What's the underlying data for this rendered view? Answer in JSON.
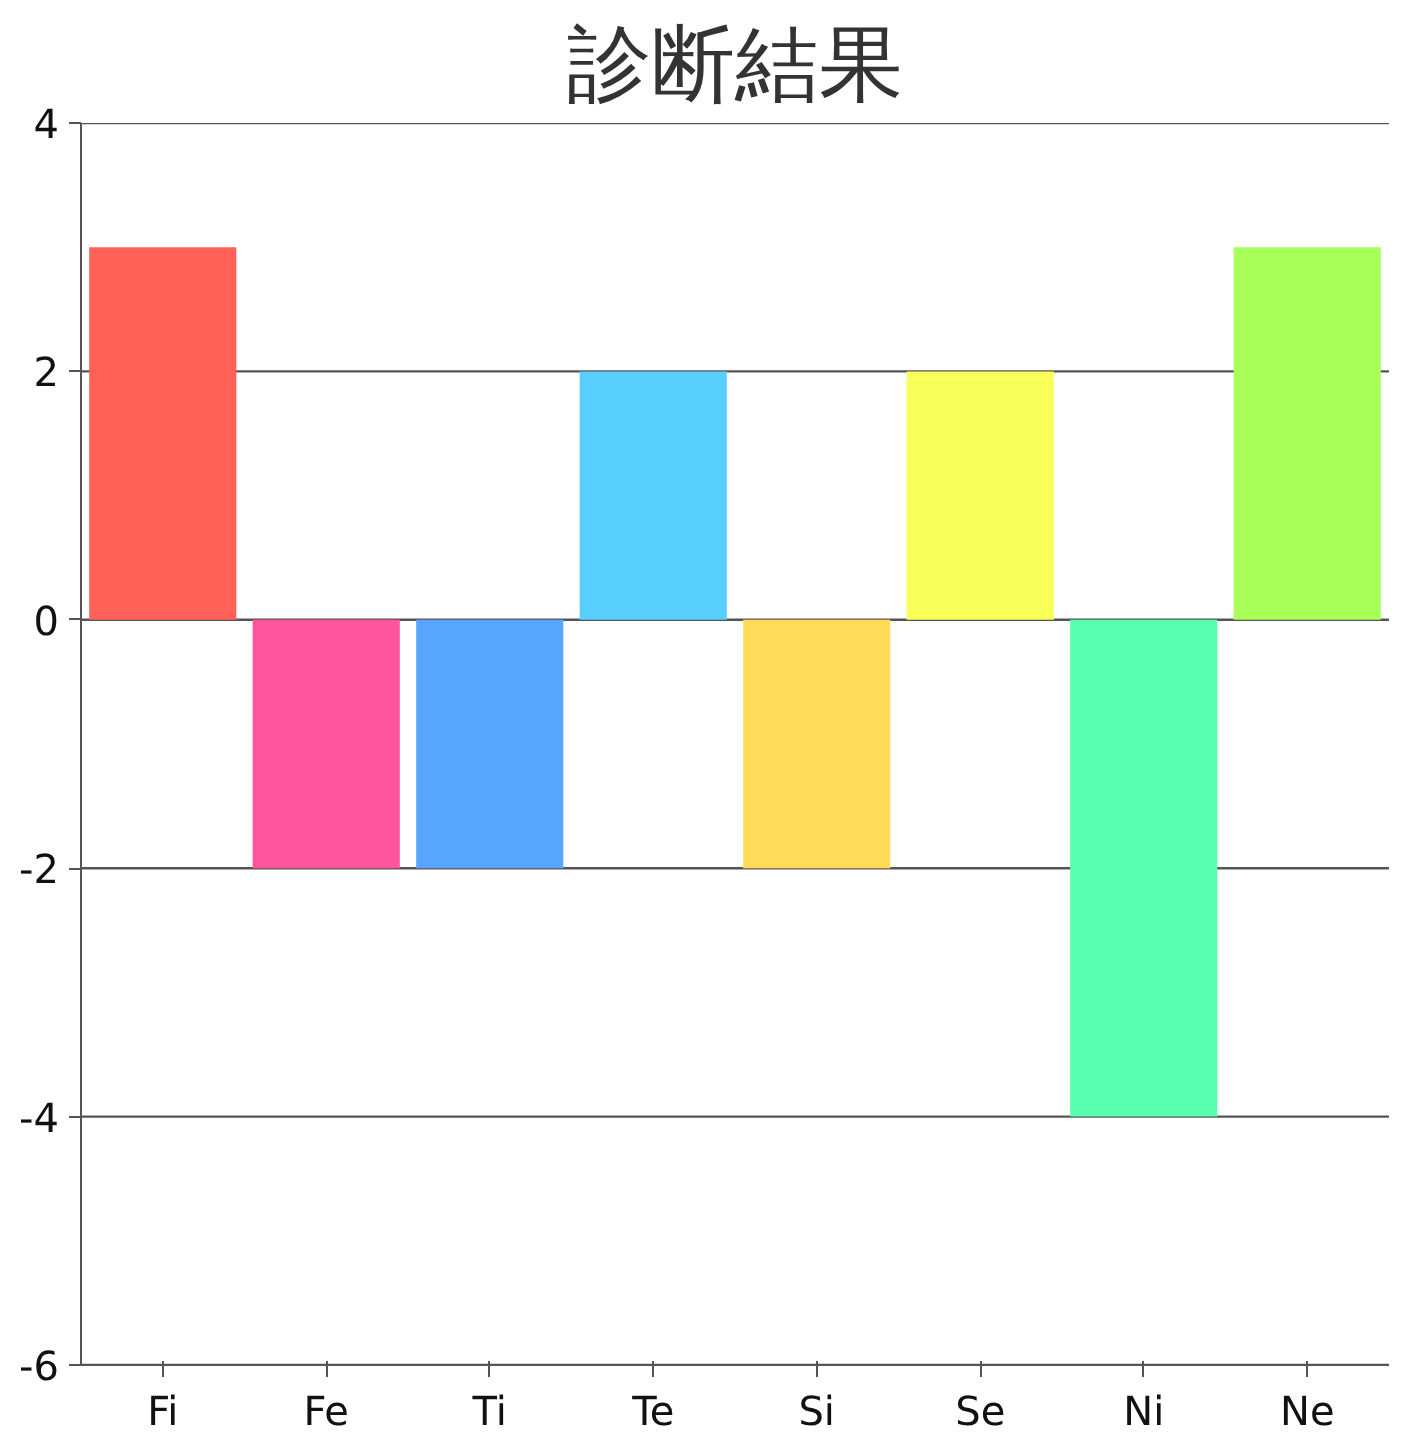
{
  "chart_data": {
    "type": "bar",
    "title": "診断結果",
    "categories": [
      "Fi",
      "Fe",
      "Ti",
      "Te",
      "Si",
      "Se",
      "Ni",
      "Ne"
    ],
    "values": [
      3,
      -2,
      -2,
      2,
      -2,
      2,
      -4,
      3
    ],
    "colors": [
      "#ff6057",
      "#ff559f",
      "#58a5ff",
      "#58cfff",
      "#ffdb58",
      "#f7ff58",
      "#58ffb0",
      "#a8ff58"
    ],
    "ylim": [
      -6,
      4
    ],
    "yticks": [
      -6,
      -4,
      -2,
      0,
      2,
      4
    ],
    "grid": "y"
  }
}
